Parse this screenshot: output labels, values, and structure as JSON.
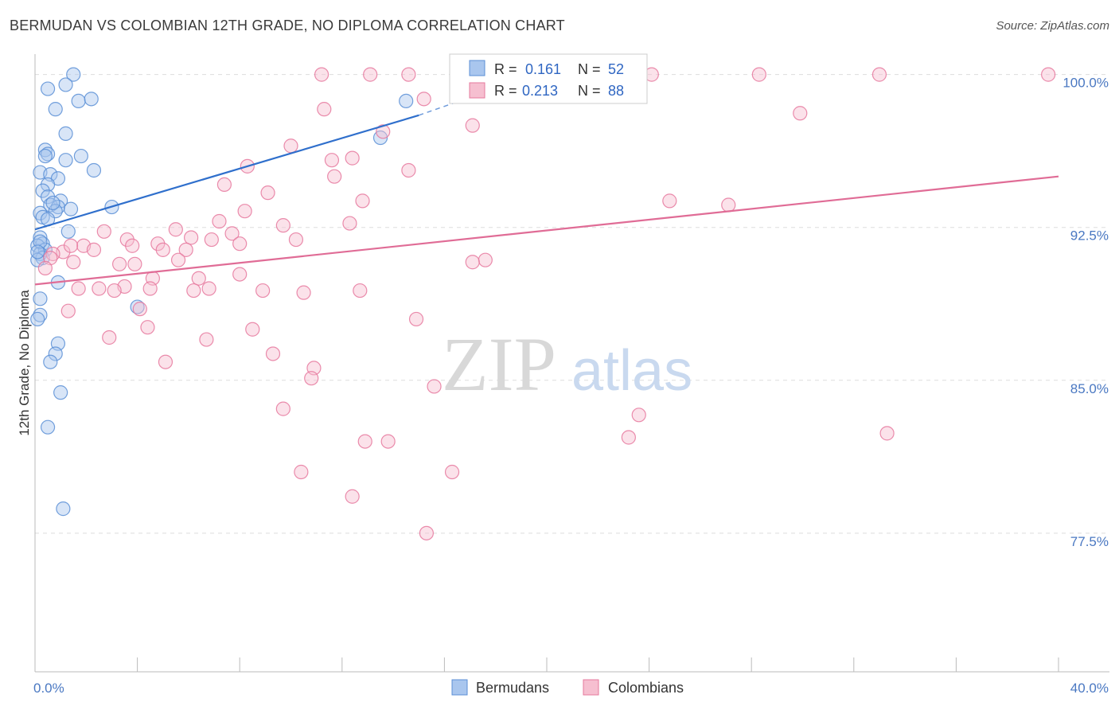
{
  "header": {
    "title": "BERMUDAN VS COLOMBIAN 12TH GRADE, NO DIPLOMA CORRELATION CHART",
    "source": "Source: ZipAtlas.com"
  },
  "watermark": {
    "zip": "ZIP",
    "atlas": "atlas"
  },
  "colors": {
    "blue": "#5b8fd6",
    "blue_fill": "#a9c6ee",
    "blue_line": "#2f6fcc",
    "pink": "#e6789d",
    "pink_fill": "#f6bfd0",
    "pink_line": "#e06c96",
    "grid": "#dddddd",
    "axis_tick": "#4a78c2"
  },
  "chart_data": {
    "type": "scatter",
    "ylabel": "12th Grade, No Diploma",
    "xlim": [
      0,
      40
    ],
    "ylim": [
      70.7,
      101
    ],
    "x_tick_labels": [
      {
        "value": 0,
        "label": "0.0%"
      },
      {
        "value": 40,
        "label": "40.0%"
      }
    ],
    "y_tick_labels": [
      {
        "value": 100,
        "label": "100.0%"
      },
      {
        "value": 92.5,
        "label": "92.5%"
      },
      {
        "value": 85,
        "label": "85.0%"
      },
      {
        "value": 77.5,
        "label": "77.5%"
      }
    ],
    "grid": true,
    "legend": {
      "position": "top-center",
      "entries": [
        {
          "series": "Bermudans",
          "r_label": "R =",
          "r": "0.161",
          "n_label": "N =",
          "n": "52"
        },
        {
          "series": "Colombians",
          "r_label": "R =",
          "r": "0.213",
          "n_label": "N =",
          "n": "88"
        }
      ]
    },
    "series": [
      {
        "name": "Bermudans",
        "color": "blue",
        "trend": {
          "x": [
            0,
            15
          ],
          "y": [
            92.4,
            98.0
          ],
          "dashed_extension_to": [
            20,
            100.2
          ]
        },
        "points": [
          [
            1.5,
            100.0
          ],
          [
            1.2,
            99.5
          ],
          [
            0.5,
            99.3
          ],
          [
            1.7,
            98.7
          ],
          [
            0.8,
            98.3
          ],
          [
            1.2,
            97.1
          ],
          [
            0.4,
            96.3
          ],
          [
            0.5,
            96.1
          ],
          [
            0.4,
            96.0
          ],
          [
            1.2,
            95.8
          ],
          [
            1.8,
            96.0
          ],
          [
            2.3,
            95.3
          ],
          [
            0.2,
            95.2
          ],
          [
            0.6,
            95.1
          ],
          [
            0.9,
            94.9
          ],
          [
            0.5,
            94.6
          ],
          [
            0.3,
            94.3
          ],
          [
            0.5,
            94.0
          ],
          [
            1.0,
            93.8
          ],
          [
            0.6,
            93.6
          ],
          [
            0.9,
            93.5
          ],
          [
            1.4,
            93.4
          ],
          [
            3.0,
            93.5
          ],
          [
            0.2,
            93.2
          ],
          [
            0.8,
            93.3
          ],
          [
            0.3,
            93.0
          ],
          [
            0.5,
            92.9
          ],
          [
            1.3,
            92.3
          ],
          [
            0.2,
            92.0
          ],
          [
            0.3,
            91.7
          ],
          [
            0.1,
            91.6
          ],
          [
            0.4,
            91.4
          ],
          [
            0.2,
            91.2
          ],
          [
            0.3,
            91.0
          ],
          [
            0.1,
            90.9
          ],
          [
            0.2,
            91.8
          ],
          [
            0.1,
            91.3
          ],
          [
            0.9,
            89.8
          ],
          [
            0.2,
            89.0
          ],
          [
            0.2,
            88.2
          ],
          [
            0.1,
            88.0
          ],
          [
            0.9,
            86.8
          ],
          [
            0.8,
            86.3
          ],
          [
            0.6,
            85.9
          ],
          [
            1.0,
            84.4
          ],
          [
            0.5,
            82.7
          ],
          [
            1.1,
            78.7
          ],
          [
            4.0,
            88.6
          ],
          [
            13.5,
            96.9
          ],
          [
            14.5,
            98.7
          ],
          [
            2.2,
            98.8
          ],
          [
            0.7,
            93.7
          ]
        ]
      },
      {
        "name": "Colombians",
        "color": "pink",
        "trend": {
          "x": [
            0,
            40
          ],
          "y": [
            89.7,
            95.0
          ]
        },
        "points": [
          [
            11.2,
            100.0
          ],
          [
            13.1,
            100.0
          ],
          [
            14.6,
            100.0
          ],
          [
            19.5,
            100.0
          ],
          [
            24.1,
            100.0
          ],
          [
            28.3,
            100.0
          ],
          [
            33.0,
            100.0
          ],
          [
            39.6,
            100.0
          ],
          [
            15.2,
            98.8
          ],
          [
            11.3,
            98.3
          ],
          [
            29.9,
            98.1
          ],
          [
            17.1,
            97.5
          ],
          [
            13.6,
            97.2
          ],
          [
            10.0,
            96.5
          ],
          [
            11.6,
            95.8
          ],
          [
            12.4,
            95.9
          ],
          [
            8.3,
            95.5
          ],
          [
            14.6,
            95.3
          ],
          [
            11.7,
            95.0
          ],
          [
            7.4,
            94.6
          ],
          [
            9.1,
            94.2
          ],
          [
            12.8,
            93.8
          ],
          [
            24.8,
            93.8
          ],
          [
            27.1,
            93.6
          ],
          [
            8.2,
            93.3
          ],
          [
            7.2,
            92.8
          ],
          [
            9.7,
            92.6
          ],
          [
            12.3,
            92.7
          ],
          [
            2.7,
            92.3
          ],
          [
            5.5,
            92.4
          ],
          [
            7.7,
            92.2
          ],
          [
            6.1,
            92.0
          ],
          [
            6.9,
            91.9
          ],
          [
            3.6,
            91.9
          ],
          [
            8.0,
            91.7
          ],
          [
            10.2,
            91.9
          ],
          [
            4.8,
            91.7
          ],
          [
            1.9,
            91.6
          ],
          [
            2.3,
            91.4
          ],
          [
            5.9,
            91.4
          ],
          [
            1.1,
            91.3
          ],
          [
            0.7,
            91.2
          ],
          [
            0.6,
            91.0
          ],
          [
            1.5,
            90.8
          ],
          [
            3.3,
            90.7
          ],
          [
            5.6,
            90.9
          ],
          [
            3.9,
            90.7
          ],
          [
            17.6,
            90.9
          ],
          [
            8.0,
            90.2
          ],
          [
            0.4,
            90.5
          ],
          [
            4.6,
            90.0
          ],
          [
            6.4,
            90.0
          ],
          [
            1.7,
            89.5
          ],
          [
            2.5,
            89.5
          ],
          [
            3.5,
            89.6
          ],
          [
            3.1,
            89.4
          ],
          [
            4.5,
            89.5
          ],
          [
            6.2,
            89.4
          ],
          [
            6.8,
            89.5
          ],
          [
            8.9,
            89.4
          ],
          [
            10.5,
            89.3
          ],
          [
            12.7,
            89.4
          ],
          [
            1.3,
            88.4
          ],
          [
            4.1,
            88.5
          ],
          [
            14.9,
            88.0
          ],
          [
            4.4,
            87.6
          ],
          [
            2.9,
            87.1
          ],
          [
            6.7,
            87.0
          ],
          [
            8.5,
            87.5
          ],
          [
            9.3,
            86.3
          ],
          [
            10.9,
            85.6
          ],
          [
            5.1,
            85.9
          ],
          [
            10.8,
            85.1
          ],
          [
            15.6,
            84.7
          ],
          [
            9.7,
            83.6
          ],
          [
            23.6,
            83.3
          ],
          [
            33.3,
            82.4
          ],
          [
            23.2,
            82.2
          ],
          [
            12.9,
            82.0
          ],
          [
            13.8,
            82.0
          ],
          [
            10.4,
            80.5
          ],
          [
            16.3,
            80.5
          ],
          [
            12.4,
            79.3
          ],
          [
            15.3,
            77.5
          ],
          [
            17.1,
            90.8
          ],
          [
            1.4,
            91.6
          ],
          [
            3.8,
            91.6
          ],
          [
            5.0,
            91.4
          ]
        ]
      }
    ]
  },
  "bottom_legend": [
    {
      "label": "Bermudans",
      "color": "blue"
    },
    {
      "label": "Colombians",
      "color": "pink"
    }
  ]
}
